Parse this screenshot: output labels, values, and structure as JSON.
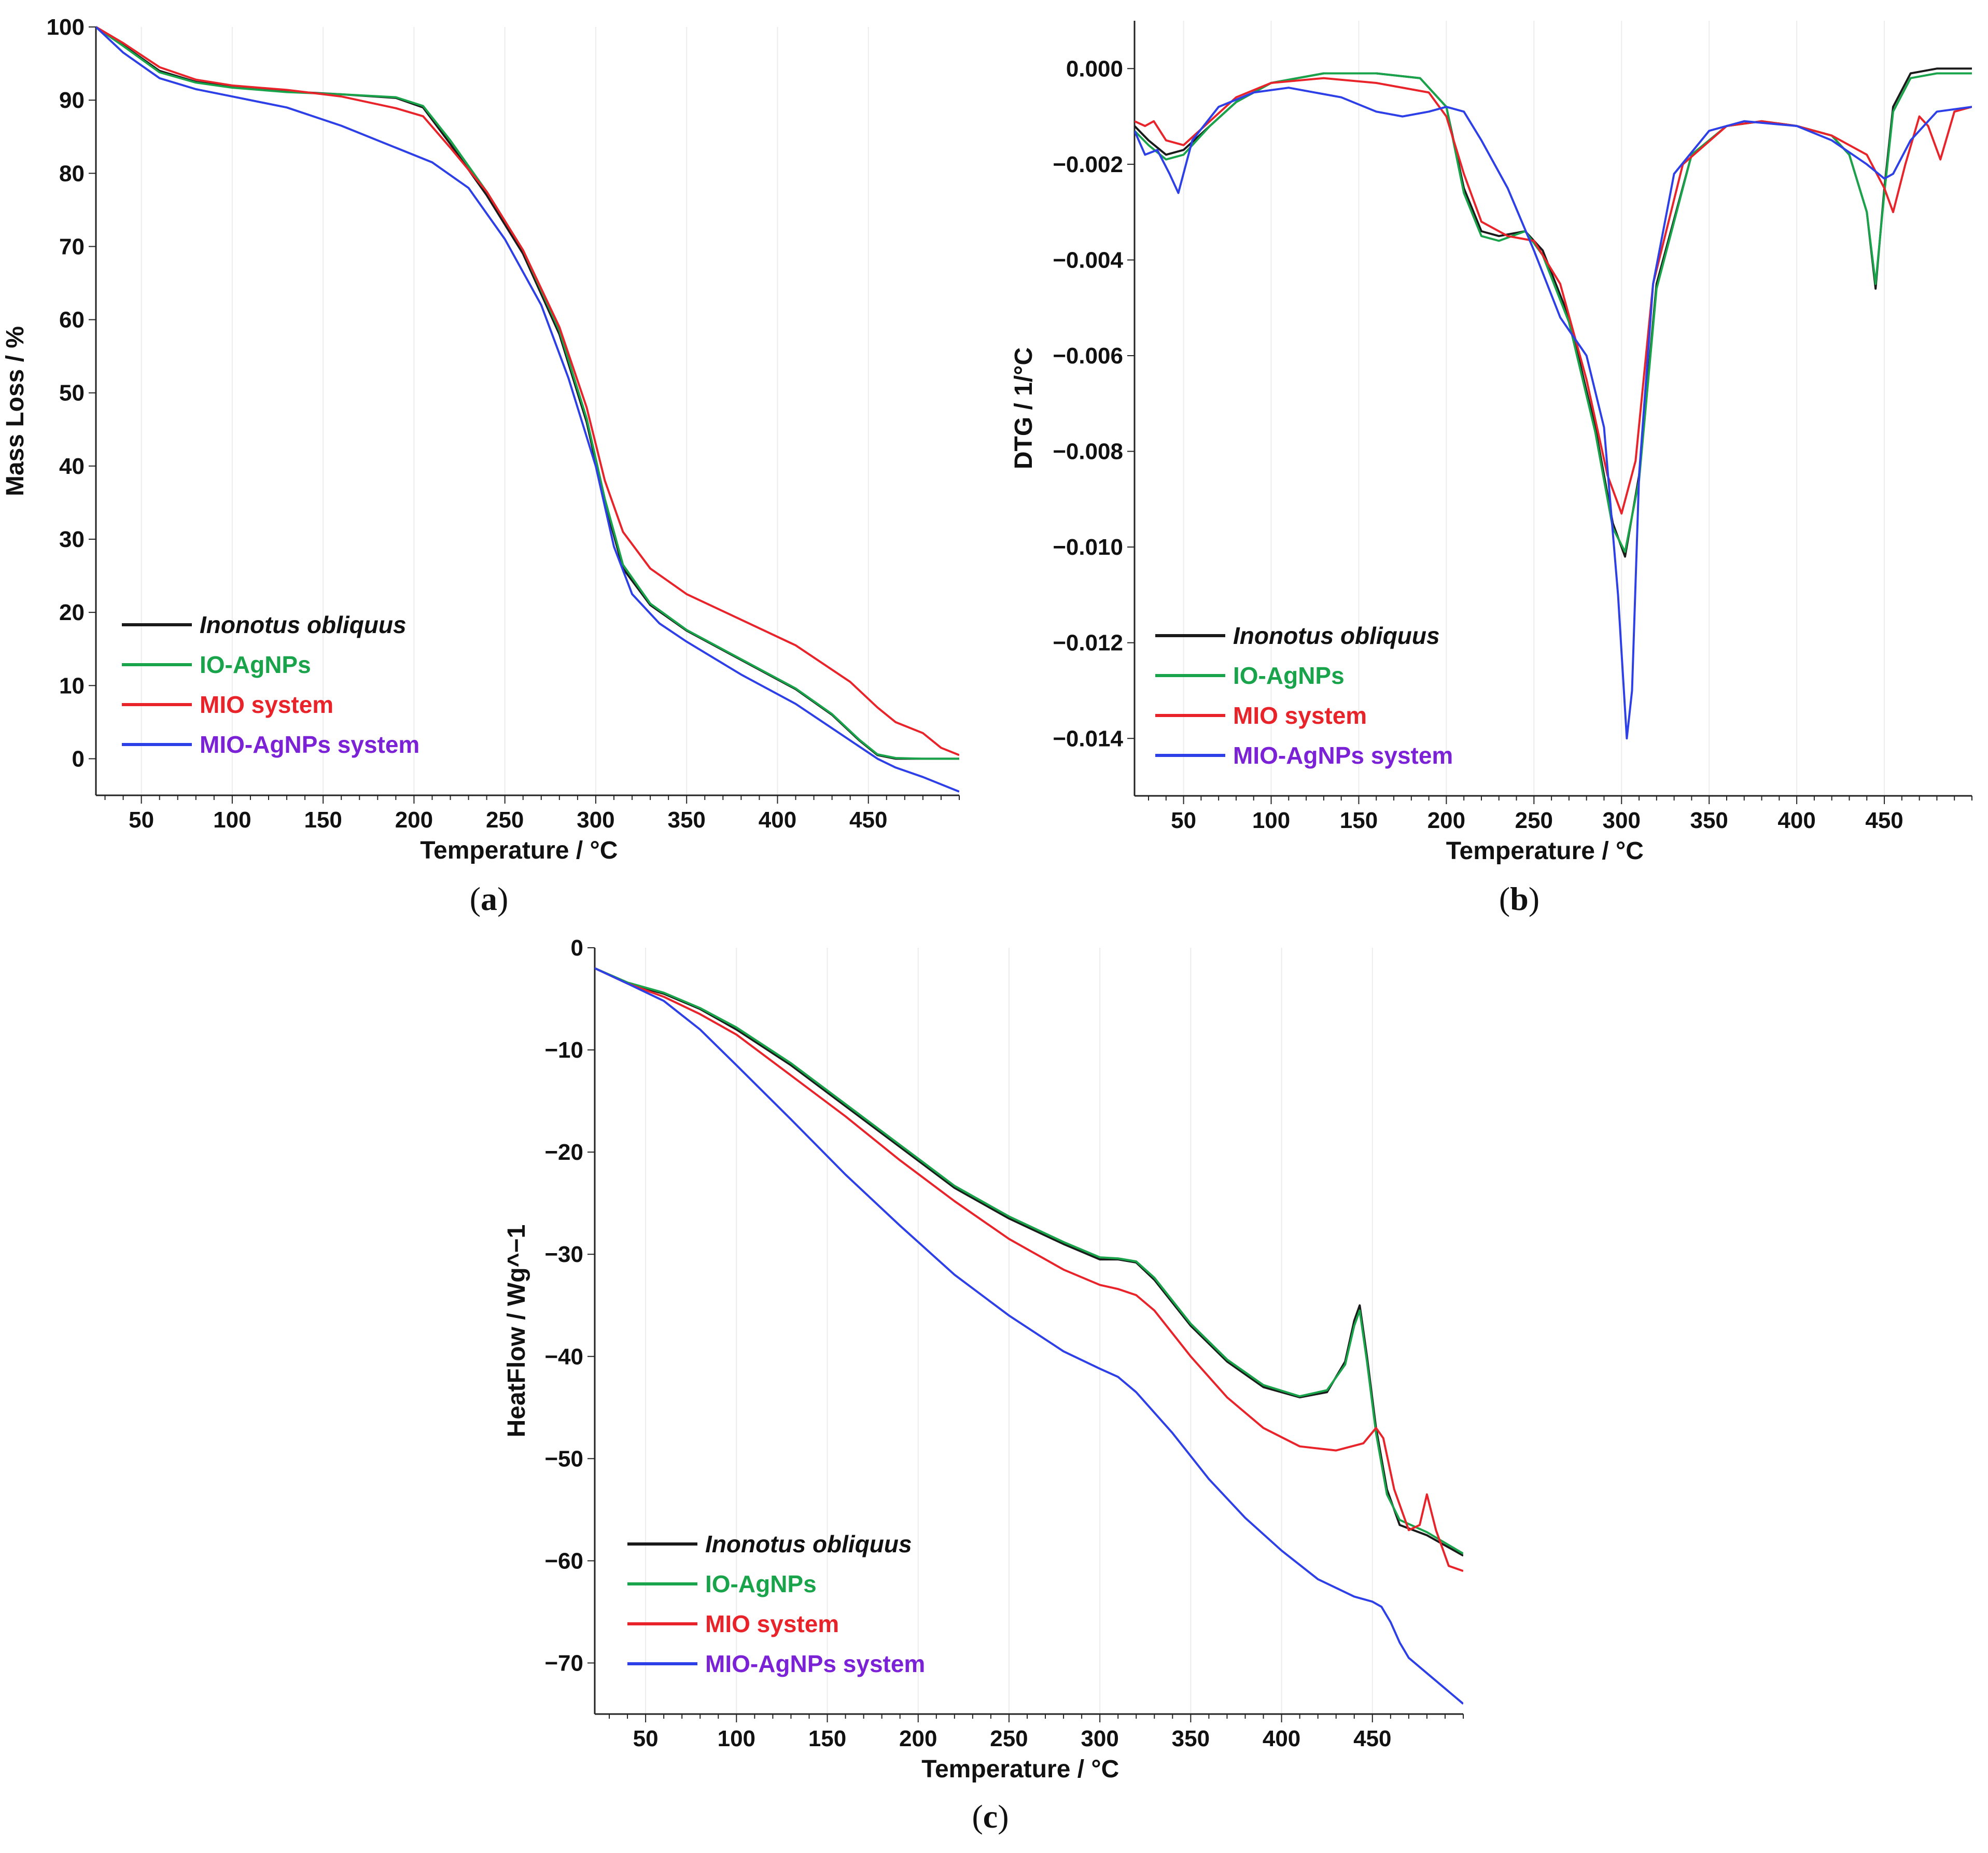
{
  "colors": {
    "inonotus": "#1a1a1a",
    "io_agnps": "#19a34a",
    "mio": "#e8232a",
    "mio_agnps": "#2d3fe6",
    "mio_agnps_label": "#7b22d6"
  },
  "chart_data": [
    {
      "id": "a",
      "type": "line",
      "caption_open": "(",
      "caption_letter": "a",
      "caption_close": ")",
      "xlabel": "Temperature /  °C",
      "ylabel": "Mass Loss / %",
      "xlim": [
        25,
        500
      ],
      "ylim": [
        -5,
        100
      ],
      "xticks": [
        50,
        100,
        150,
        200,
        250,
        300,
        350,
        400,
        450
      ],
      "yticks": [
        0,
        10,
        20,
        30,
        40,
        50,
        60,
        70,
        80,
        90,
        100
      ],
      "legend_position": "bottom-left",
      "series": [
        {
          "name": "Inonotus obliquus",
          "key": "inonotus",
          "italic": true,
          "x": [
            25,
            40,
            60,
            80,
            100,
            130,
            160,
            190,
            205,
            220,
            240,
            260,
            280,
            295,
            305,
            315,
            330,
            350,
            380,
            410,
            430,
            445,
            455,
            465,
            480,
            500
          ],
          "y": [
            100,
            97.5,
            94,
            92.5,
            91.8,
            91.2,
            90.8,
            90.3,
            89,
            84,
            77,
            69,
            58,
            46,
            35,
            26,
            21,
            17.5,
            13.5,
            9.5,
            6,
            2.5,
            0.5,
            0,
            0,
            0
          ]
        },
        {
          "name": "IO-AgNPs",
          "key": "io_agnps",
          "italic": false,
          "x": [
            25,
            40,
            60,
            80,
            100,
            130,
            160,
            190,
            205,
            220,
            240,
            260,
            280,
            295,
            305,
            315,
            330,
            350,
            380,
            410,
            430,
            445,
            455,
            465,
            480,
            500
          ],
          "y": [
            100,
            97.4,
            93.8,
            92.4,
            91.7,
            91.1,
            90.8,
            90.4,
            89.2,
            84.5,
            77.5,
            69.5,
            58.5,
            46.5,
            35.5,
            26.5,
            21.2,
            17.6,
            13.6,
            9.6,
            6.1,
            2.6,
            0.6,
            0.1,
            0,
            0
          ]
        },
        {
          "name": "MIO system",
          "key": "mio",
          "italic": false,
          "x": [
            25,
            40,
            60,
            80,
            100,
            130,
            160,
            190,
            205,
            220,
            240,
            260,
            280,
            295,
            305,
            315,
            330,
            350,
            380,
            410,
            440,
            455,
            465,
            480,
            490,
            500
          ],
          "y": [
            100,
            97.8,
            94.5,
            92.8,
            92,
            91.4,
            90.5,
            88.9,
            87.8,
            83.5,
            77.5,
            69.5,
            59,
            48,
            38,
            31,
            26,
            22.5,
            19,
            15.5,
            10.5,
            7,
            5,
            3.5,
            1.5,
            0.5
          ]
        },
        {
          "name": "MIO-AgNPs system",
          "key": "mio_agnps",
          "italic": false,
          "label_key": "mio_agnps_label",
          "x": [
            25,
            40,
            60,
            80,
            100,
            130,
            160,
            190,
            210,
            230,
            250,
            270,
            285,
            300,
            310,
            320,
            335,
            350,
            380,
            410,
            440,
            455,
            465,
            480,
            500
          ],
          "y": [
            100,
            96.5,
            93,
            91.5,
            90.5,
            89,
            86.5,
            83.5,
            81.5,
            78,
            71,
            62,
            52,
            40,
            29,
            22.5,
            18.5,
            16,
            11.5,
            7.5,
            2.5,
            0,
            -1.2,
            -2.5,
            -4.5
          ]
        }
      ]
    },
    {
      "id": "b",
      "type": "line",
      "caption_open": "(",
      "caption_letter": "b",
      "caption_close": ")",
      "xlabel": "Temperature /  °C",
      "ylabel": "DTG /  1/°C",
      "xlim": [
        22,
        500
      ],
      "ylim": [
        -0.0152,
        0.001
      ],
      "xticks": [
        50,
        100,
        150,
        200,
        250,
        300,
        350,
        400,
        450
      ],
      "yticks": [
        0.0,
        -0.002,
        -0.004,
        -0.006,
        -0.008,
        -0.01,
        -0.012,
        -0.014
      ],
      "ytick_labels": [
        "0.000",
        "−0.002",
        "−0.004",
        "−0.006",
        "−0.008",
        "−0.010",
        "−0.012",
        "−0.014"
      ],
      "legend_position": "bottom-left",
      "series": [
        {
          "name": "Inonotus obliquus",
          "key": "inonotus",
          "italic": true,
          "x": [
            22,
            30,
            40,
            50,
            65,
            80,
            100,
            130,
            160,
            185,
            200,
            210,
            220,
            230,
            245,
            255,
            270,
            285,
            295,
            302,
            310,
            320,
            340,
            360,
            380,
            400,
            420,
            430,
            440,
            445,
            450,
            455,
            465,
            480,
            500
          ],
          "y": [
            -0.0012,
            -0.0015,
            -0.0018,
            -0.0017,
            -0.0012,
            -0.0007,
            -0.0003,
            -0.0001,
            -0.0001,
            -0.0002,
            -0.0008,
            -0.0025,
            -0.0034,
            -0.0035,
            -0.0034,
            -0.0038,
            -0.0052,
            -0.0075,
            -0.0095,
            -0.0102,
            -0.0085,
            -0.0045,
            -0.0018,
            -0.0012,
            -0.0011,
            -0.0012,
            -0.0014,
            -0.0018,
            -0.003,
            -0.0046,
            -0.0025,
            -0.0008,
            -0.0001,
            0.0,
            0.0
          ]
        },
        {
          "name": "IO-AgNPs",
          "key": "io_agnps",
          "italic": false,
          "x": [
            22,
            30,
            40,
            50,
            65,
            80,
            100,
            130,
            160,
            185,
            200,
            210,
            220,
            230,
            245,
            255,
            270,
            285,
            295,
            302,
            310,
            320,
            340,
            360,
            380,
            400,
            420,
            430,
            440,
            445,
            450,
            455,
            465,
            480,
            500
          ],
          "y": [
            -0.0013,
            -0.0016,
            -0.0019,
            -0.0018,
            -0.0012,
            -0.0007,
            -0.0003,
            -0.0001,
            -0.0001,
            -0.0002,
            -0.0008,
            -0.0026,
            -0.0035,
            -0.0036,
            -0.0034,
            -0.0039,
            -0.0053,
            -0.0076,
            -0.0096,
            -0.0101,
            -0.0086,
            -0.0046,
            -0.0018,
            -0.0012,
            -0.0011,
            -0.0012,
            -0.0014,
            -0.0018,
            -0.003,
            -0.0045,
            -0.0026,
            -0.0009,
            -0.0002,
            -0.0001,
            -0.0001
          ]
        },
        {
          "name": "MIO system",
          "key": "mio",
          "italic": false,
          "x": [
            22,
            28,
            33,
            40,
            50,
            65,
            80,
            100,
            130,
            160,
            190,
            200,
            210,
            220,
            235,
            250,
            265,
            280,
            292,
            300,
            308,
            318,
            335,
            360,
            380,
            400,
            420,
            440,
            450,
            455,
            462,
            470,
            475,
            482,
            490,
            500
          ],
          "y": [
            -0.0011,
            -0.0012,
            -0.0011,
            -0.0015,
            -0.0016,
            -0.0011,
            -0.0006,
            -0.0003,
            -0.0002,
            -0.0003,
            -0.0005,
            -0.001,
            -0.0022,
            -0.0032,
            -0.0035,
            -0.0036,
            -0.0045,
            -0.0065,
            -0.0085,
            -0.0093,
            -0.0082,
            -0.0045,
            -0.002,
            -0.0012,
            -0.0011,
            -0.0012,
            -0.0014,
            -0.0018,
            -0.0025,
            -0.003,
            -0.002,
            -0.001,
            -0.0012,
            -0.0019,
            -0.0009,
            -0.0008
          ]
        },
        {
          "name": "MIO-AgNPs system",
          "key": "mio_agnps",
          "italic": false,
          "label_key": "mio_agnps_label",
          "x": [
            22,
            28,
            35,
            42,
            47,
            55,
            70,
            90,
            110,
            140,
            160,
            175,
            190,
            200,
            210,
            220,
            235,
            250,
            265,
            280,
            290,
            298,
            303,
            306,
            310,
            318,
            330,
            350,
            370,
            400,
            420,
            440,
            450,
            455,
            465,
            480,
            500
          ],
          "y": [
            -0.0013,
            -0.0018,
            -0.0017,
            -0.0022,
            -0.0026,
            -0.0015,
            -0.0008,
            -0.0005,
            -0.0004,
            -0.0006,
            -0.0009,
            -0.001,
            -0.0009,
            -0.0008,
            -0.0009,
            -0.0015,
            -0.0025,
            -0.0038,
            -0.0052,
            -0.006,
            -0.0075,
            -0.011,
            -0.014,
            -0.013,
            -0.0085,
            -0.0045,
            -0.0022,
            -0.0013,
            -0.0011,
            -0.0012,
            -0.0015,
            -0.002,
            -0.0023,
            -0.0022,
            -0.0015,
            -0.0009,
            -0.0008
          ]
        }
      ]
    },
    {
      "id": "c",
      "type": "line",
      "caption_open": "(",
      "caption_letter": "c",
      "caption_close": ")",
      "xlabel": "Temperature /  °C",
      "ylabel": "HeatFlow /  Wg^−1",
      "xlim": [
        22,
        500
      ],
      "ylim": [
        -75,
        0
      ],
      "xticks": [
        50,
        100,
        150,
        200,
        250,
        300,
        350,
        400,
        450
      ],
      "yticks": [
        0,
        -10,
        -20,
        -30,
        -40,
        -50,
        -60,
        -70
      ],
      "ytick_labels": [
        "0",
        "−10",
        "−20",
        "−30",
        "−40",
        "−50",
        "−60",
        "−70"
      ],
      "legend_position": "bottom-left",
      "series": [
        {
          "name": "Inonotus obliquus",
          "key": "inonotus",
          "italic": true,
          "x": [
            22,
            40,
            60,
            80,
            100,
            130,
            160,
            190,
            220,
            250,
            280,
            300,
            310,
            320,
            330,
            350,
            370,
            390,
            410,
            425,
            435,
            440,
            443,
            447,
            452,
            458,
            465,
            480,
            500
          ],
          "y": [
            -2,
            -3.5,
            -4.5,
            -6,
            -8,
            -11.5,
            -15.5,
            -19.5,
            -23.5,
            -26.5,
            -29,
            -30.5,
            -30.5,
            -30.8,
            -32.5,
            -37,
            -40.5,
            -43,
            -44,
            -43.5,
            -40.5,
            -36.5,
            -35,
            -40,
            -47,
            -53,
            -56.5,
            -57.5,
            -59.5
          ]
        },
        {
          "name": "IO-AgNPs",
          "key": "io_agnps",
          "italic": false,
          "x": [
            22,
            40,
            60,
            80,
            100,
            130,
            160,
            190,
            220,
            250,
            280,
            300,
            310,
            320,
            330,
            350,
            370,
            390,
            410,
            425,
            435,
            440,
            443,
            447,
            452,
            458,
            465,
            480,
            500
          ],
          "y": [
            -2,
            -3.4,
            -4.4,
            -5.9,
            -7.8,
            -11.3,
            -15.3,
            -19.3,
            -23.3,
            -26.3,
            -28.8,
            -30.3,
            -30.4,
            -30.7,
            -32.3,
            -36.8,
            -40.3,
            -42.8,
            -43.9,
            -43.3,
            -40.8,
            -37,
            -35.5,
            -40.5,
            -47.5,
            -53.5,
            -56,
            -57.2,
            -59.3
          ]
        },
        {
          "name": "MIO system",
          "key": "mio",
          "italic": false,
          "x": [
            22,
            40,
            60,
            80,
            100,
            130,
            160,
            190,
            220,
            250,
            280,
            300,
            310,
            320,
            330,
            350,
            370,
            390,
            410,
            430,
            445,
            452,
            456,
            462,
            470,
            476,
            480,
            485,
            492,
            500
          ],
          "y": [
            -2,
            -3.5,
            -4.8,
            -6.5,
            -8.5,
            -12.5,
            -16.5,
            -20.8,
            -24.8,
            -28.5,
            -31.5,
            -33,
            -33.4,
            -34,
            -35.5,
            -40,
            -44,
            -47,
            -48.8,
            -49.2,
            -48.5,
            -47,
            -48,
            -53,
            -57,
            -56.5,
            -53.5,
            -57,
            -60.5,
            -61
          ]
        },
        {
          "name": "MIO-AgNPs system",
          "key": "mio_agnps",
          "italic": false,
          "label_key": "mio_agnps_label",
          "x": [
            22,
            40,
            60,
            80,
            100,
            130,
            160,
            190,
            220,
            250,
            280,
            300,
            310,
            320,
            340,
            360,
            380,
            400,
            420,
            440,
            450,
            455,
            460,
            465,
            470,
            480,
            500
          ],
          "y": [
            -2,
            -3.5,
            -5.2,
            -8,
            -11.5,
            -16.8,
            -22.2,
            -27.2,
            -32,
            -36,
            -39.5,
            -41.2,
            -42,
            -43.5,
            -47.5,
            -52,
            -55.8,
            -59,
            -61.8,
            -63.5,
            -64,
            -64.5,
            -66,
            -68,
            -69.5,
            -71,
            -74
          ]
        }
      ]
    }
  ]
}
